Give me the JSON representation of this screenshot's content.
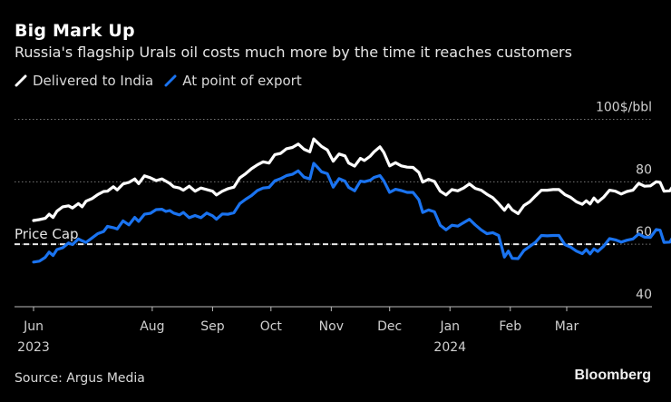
{
  "header": {
    "title": "Big Mark Up",
    "subtitle": "Russia's flagship Urals oil costs much more by the time it reaches customers"
  },
  "footer": {
    "source": "Source: Argus Media",
    "brand": "Bloomberg"
  },
  "chart_data": {
    "type": "line",
    "title": "Big Mark Up",
    "subtitle": "Russia's flagship Urals oil costs much more by the time it reaches customers",
    "xlabel": "",
    "ylabel": "$/bbl",
    "y_unit_label": "100$/bbl",
    "ylim": [
      40,
      100
    ],
    "y_ticks": [
      {
        "value": 100,
        "label": "100$/bbl"
      },
      {
        "value": 80,
        "label": "80"
      },
      {
        "value": 60,
        "label": "60"
      },
      {
        "value": 40,
        "label": "40"
      }
    ],
    "x_start": "2023-06-01",
    "x_ticks": [
      {
        "day": 0,
        "label": "Jun",
        "year": "2023"
      },
      {
        "day": 61,
        "label": "Aug",
        "year": ""
      },
      {
        "day": 92,
        "label": "Sep",
        "year": ""
      },
      {
        "day": 122,
        "label": "Oct",
        "year": ""
      },
      {
        "day": 153,
        "label": "Nov",
        "year": ""
      },
      {
        "day": 183,
        "label": "Dec",
        "year": ""
      },
      {
        "day": 214,
        "label": "Jan",
        "year": "2024"
      },
      {
        "day": 245,
        "label": "Feb",
        "year": ""
      },
      {
        "day": 274,
        "label": "Mar",
        "year": ""
      }
    ],
    "grid": true,
    "legend_position": "top-left",
    "annotations": [
      {
        "label": "Price Cap",
        "value": 60,
        "style": "dashed"
      }
    ],
    "series": [
      {
        "name": "Delivered to India",
        "color": "#ffffff",
        "points": [
          [
            0,
            67.6
          ],
          [
            3,
            67.9
          ],
          [
            6,
            68.3
          ],
          [
            8,
            69.6
          ],
          [
            10,
            68.6
          ],
          [
            12,
            70.6
          ],
          [
            15,
            72.0
          ],
          [
            18,
            72.3
          ],
          [
            20,
            71.6
          ],
          [
            23,
            73.0
          ],
          [
            25,
            72.0
          ],
          [
            27,
            73.8
          ],
          [
            30,
            74.6
          ],
          [
            33,
            75.9
          ],
          [
            36,
            76.9
          ],
          [
            38,
            77.0
          ],
          [
            41,
            78.4
          ],
          [
            43,
            77.4
          ],
          [
            46,
            79.3
          ],
          [
            49,
            79.8
          ],
          [
            52,
            80.9
          ],
          [
            54,
            79.4
          ],
          [
            57,
            81.9
          ],
          [
            60,
            81.3
          ],
          [
            63,
            80.4
          ],
          [
            66,
            80.9
          ],
          [
            68,
            80.2
          ],
          [
            70,
            79.5
          ],
          [
            72,
            78.4
          ],
          [
            75,
            78.0
          ],
          [
            77,
            77.3
          ],
          [
            80,
            78.6
          ],
          [
            83,
            77.0
          ],
          [
            86,
            78.0
          ],
          [
            89,
            77.5
          ],
          [
            92,
            77.0
          ],
          [
            94,
            75.8
          ],
          [
            97,
            77.0
          ],
          [
            100,
            77.8
          ],
          [
            103,
            78.3
          ],
          [
            106,
            81.3
          ],
          [
            109,
            82.6
          ],
          [
            112,
            84.2
          ],
          [
            115,
            85.4
          ],
          [
            118,
            86.4
          ],
          [
            121,
            86.0
          ],
          [
            124,
            88.7
          ],
          [
            127,
            89.1
          ],
          [
            130,
            90.6
          ],
          [
            133,
            91.0
          ],
          [
            136,
            92.1
          ],
          [
            139,
            90.4
          ],
          [
            142,
            89.6
          ],
          [
            144,
            93.7
          ],
          [
            146,
            92.5
          ],
          [
            148,
            91.3
          ],
          [
            151,
            90.2
          ],
          [
            154,
            86.6
          ],
          [
            157,
            88.9
          ],
          [
            160,
            88.3
          ],
          [
            162,
            86.0
          ],
          [
            165,
            85.0
          ],
          [
            168,
            87.5
          ],
          [
            170,
            86.8
          ],
          [
            173,
            88.2
          ],
          [
            175,
            89.6
          ],
          [
            178,
            91.2
          ],
          [
            180,
            89.4
          ],
          [
            183,
            85.1
          ],
          [
            186,
            86.1
          ],
          [
            189,
            85.1
          ],
          [
            192,
            84.7
          ],
          [
            195,
            84.6
          ],
          [
            198,
            83.0
          ],
          [
            200,
            79.9
          ],
          [
            203,
            80.8
          ],
          [
            206,
            80.1
          ],
          [
            209,
            77.0
          ],
          [
            212,
            75.8
          ],
          [
            215,
            77.5
          ],
          [
            218,
            77.1
          ],
          [
            221,
            78.0
          ],
          [
            224,
            79.3
          ],
          [
            227,
            77.9
          ],
          [
            230,
            77.3
          ],
          [
            233,
            76.0
          ],
          [
            236,
            74.9
          ],
          [
            239,
            73.0
          ],
          [
            242,
            70.9
          ],
          [
            244,
            72.6
          ],
          [
            246,
            71.0
          ],
          [
            249,
            69.8
          ],
          [
            252,
            72.4
          ],
          [
            255,
            73.6
          ],
          [
            258,
            75.5
          ],
          [
            261,
            77.3
          ],
          [
            264,
            77.3
          ],
          [
            267,
            77.5
          ],
          [
            270,
            77.5
          ],
          [
            273,
            75.9
          ],
          [
            276,
            75.0
          ],
          [
            279,
            73.6
          ],
          [
            282,
            72.8
          ],
          [
            284,
            73.9
          ],
          [
            286,
            72.9
          ],
          [
            288,
            74.8
          ],
          [
            290,
            73.5
          ],
          [
            293,
            75.1
          ],
          [
            296,
            77.3
          ],
          [
            299,
            77.0
          ],
          [
            302,
            76.1
          ],
          [
            305,
            76.9
          ],
          [
            308,
            77.3
          ],
          [
            311,
            79.5
          ],
          [
            314,
            78.6
          ],
          [
            317,
            78.7
          ],
          [
            320,
            80.0
          ],
          [
            322,
            79.8
          ],
          [
            324,
            77.0
          ],
          [
            327,
            77.1
          ],
          [
            330,
            79.9
          ],
          [
            333,
            79.9
          ],
          [
            336,
            80.8
          ],
          [
            338,
            80.5
          ],
          [
            341,
            81.4
          ],
          [
            344,
            81.6
          ],
          [
            346,
            79.9
          ],
          [
            349,
            79.0
          ],
          [
            352,
            79.2
          ],
          [
            355,
            80.6
          ],
          [
            358,
            81.9
          ],
          [
            360,
            81.1
          ],
          [
            363,
            79.9
          ],
          [
            366,
            79.2
          ],
          [
            369,
            80.3
          ],
          [
            372,
            83.1
          ],
          [
            374,
            82.6
          ],
          [
            377,
            81.7
          ],
          [
            380,
            80.4
          ],
          [
            383,
            80.9
          ],
          [
            386,
            79.2
          ],
          [
            388,
            79.3
          ],
          [
            390,
            80.8
          ],
          [
            392,
            81.0
          ],
          [
            393,
            81.3
          ]
        ]
      },
      {
        "name": "At point of export",
        "color": "#1a73f0",
        "points": [
          [
            0,
            54.3
          ],
          [
            3,
            54.6
          ],
          [
            6,
            55.8
          ],
          [
            8,
            57.5
          ],
          [
            10,
            56.4
          ],
          [
            12,
            58.3
          ],
          [
            15,
            58.9
          ],
          [
            18,
            60.4
          ],
          [
            20,
            59.9
          ],
          [
            23,
            61.7
          ],
          [
            25,
            61.1
          ],
          [
            27,
            60.6
          ],
          [
            30,
            62.0
          ],
          [
            33,
            63.4
          ],
          [
            36,
            64.1
          ],
          [
            38,
            65.7
          ],
          [
            41,
            65.3
          ],
          [
            43,
            64.9
          ],
          [
            46,
            67.5
          ],
          [
            49,
            66.2
          ],
          [
            52,
            68.6
          ],
          [
            54,
            67.3
          ],
          [
            57,
            69.6
          ],
          [
            60,
            69.9
          ],
          [
            63,
            71.1
          ],
          [
            66,
            71.2
          ],
          [
            68,
            70.5
          ],
          [
            70,
            70.8
          ],
          [
            72,
            70.0
          ],
          [
            75,
            69.4
          ],
          [
            77,
            70.2
          ],
          [
            80,
            68.5
          ],
          [
            83,
            69.2
          ],
          [
            86,
            68.5
          ],
          [
            89,
            70.0
          ],
          [
            92,
            69.1
          ],
          [
            94,
            68.0
          ],
          [
            97,
            69.7
          ],
          [
            100,
            69.6
          ],
          [
            103,
            70.1
          ],
          [
            106,
            73.0
          ],
          [
            109,
            74.4
          ],
          [
            112,
            75.6
          ],
          [
            115,
            77.2
          ],
          [
            118,
            78.0
          ],
          [
            121,
            78.2
          ],
          [
            124,
            80.3
          ],
          [
            127,
            81.0
          ],
          [
            130,
            82.0
          ],
          [
            133,
            82.4
          ],
          [
            136,
            83.5
          ],
          [
            139,
            81.5
          ],
          [
            142,
            80.9
          ],
          [
            144,
            85.9
          ],
          [
            146,
            84.6
          ],
          [
            148,
            83.2
          ],
          [
            151,
            82.6
          ],
          [
            154,
            78.3
          ],
          [
            157,
            81.0
          ],
          [
            160,
            80.2
          ],
          [
            162,
            78.2
          ],
          [
            165,
            77.1
          ],
          [
            168,
            80.2
          ],
          [
            170,
            80.0
          ],
          [
            173,
            80.5
          ],
          [
            175,
            81.4
          ],
          [
            178,
            82.0
          ],
          [
            180,
            80.3
          ],
          [
            183,
            76.6
          ],
          [
            186,
            77.6
          ],
          [
            189,
            77.2
          ],
          [
            192,
            76.6
          ],
          [
            195,
            76.6
          ],
          [
            198,
            74.3
          ],
          [
            200,
            70.2
          ],
          [
            203,
            71.0
          ],
          [
            206,
            70.4
          ],
          [
            209,
            66.1
          ],
          [
            212,
            64.6
          ],
          [
            215,
            66.1
          ],
          [
            218,
            65.8
          ],
          [
            221,
            66.9
          ],
          [
            224,
            68.0
          ],
          [
            227,
            66.2
          ],
          [
            230,
            64.6
          ],
          [
            233,
            63.4
          ],
          [
            236,
            63.7
          ],
          [
            239,
            62.8
          ],
          [
            242,
            55.9
          ],
          [
            244,
            57.8
          ],
          [
            246,
            55.5
          ],
          [
            249,
            55.4
          ],
          [
            252,
            58.0
          ],
          [
            255,
            59.3
          ],
          [
            258,
            60.7
          ],
          [
            261,
            62.8
          ],
          [
            264,
            62.7
          ],
          [
            267,
            62.8
          ],
          [
            270,
            62.8
          ],
          [
            273,
            59.9
          ],
          [
            276,
            59.1
          ],
          [
            279,
            57.8
          ],
          [
            282,
            57.0
          ],
          [
            284,
            58.3
          ],
          [
            286,
            56.9
          ],
          [
            288,
            58.5
          ],
          [
            290,
            57.7
          ],
          [
            293,
            59.4
          ],
          [
            296,
            61.8
          ],
          [
            299,
            61.4
          ],
          [
            302,
            60.7
          ],
          [
            305,
            61.3
          ],
          [
            308,
            61.7
          ],
          [
            311,
            63.3
          ],
          [
            314,
            62.3
          ],
          [
            317,
            62.2
          ],
          [
            320,
            64.7
          ],
          [
            322,
            64.5
          ],
          [
            324,
            60.6
          ],
          [
            327,
            60.7
          ],
          [
            330,
            63.8
          ],
          [
            333,
            63.8
          ],
          [
            336,
            65.2
          ],
          [
            338,
            65.0
          ],
          [
            341,
            66.1
          ],
          [
            344,
            66.5
          ],
          [
            346,
            64.6
          ],
          [
            349,
            64.1
          ],
          [
            352,
            64.3
          ],
          [
            355,
            65.8
          ],
          [
            358,
            66.6
          ],
          [
            360,
            65.5
          ],
          [
            363,
            64.6
          ],
          [
            366,
            64.6
          ],
          [
            369,
            65.6
          ],
          [
            372,
            68.2
          ],
          [
            374,
            67.4
          ],
          [
            377,
            66.7
          ],
          [
            380,
            65.4
          ],
          [
            383,
            66.0
          ],
          [
            386,
            64.4
          ],
          [
            388,
            64.6
          ],
          [
            390,
            66.2
          ],
          [
            392,
            66.6
          ],
          [
            393,
            66.9
          ]
        ]
      }
    ]
  }
}
